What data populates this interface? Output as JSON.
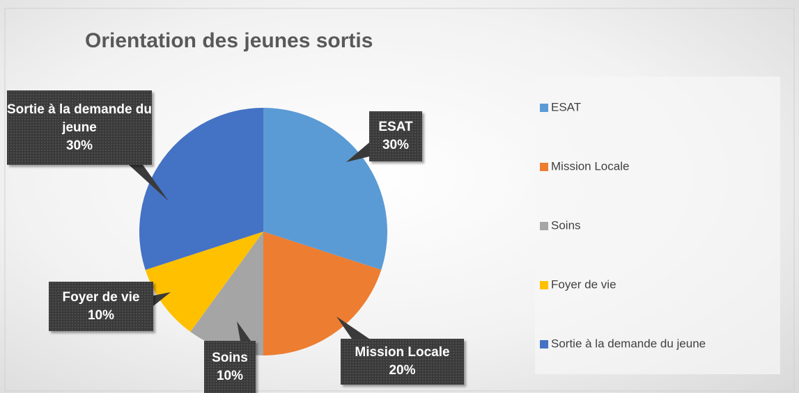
{
  "chart_data": {
    "type": "pie",
    "title": "Orientation des jeunes sortis",
    "categories": [
      "ESAT",
      "Mission Locale",
      "Soins",
      "Foyer de vie",
      "Sortie à la demande du jeune"
    ],
    "values": [
      30,
      20,
      10,
      10,
      30
    ],
    "value_labels": [
      "30%",
      "20%",
      "10%",
      "10%",
      "30%"
    ],
    "colors": [
      "#5b9bd5",
      "#ed7d31",
      "#a5a5a5",
      "#ffc000",
      "#4472c4"
    ],
    "legend": "right"
  }
}
